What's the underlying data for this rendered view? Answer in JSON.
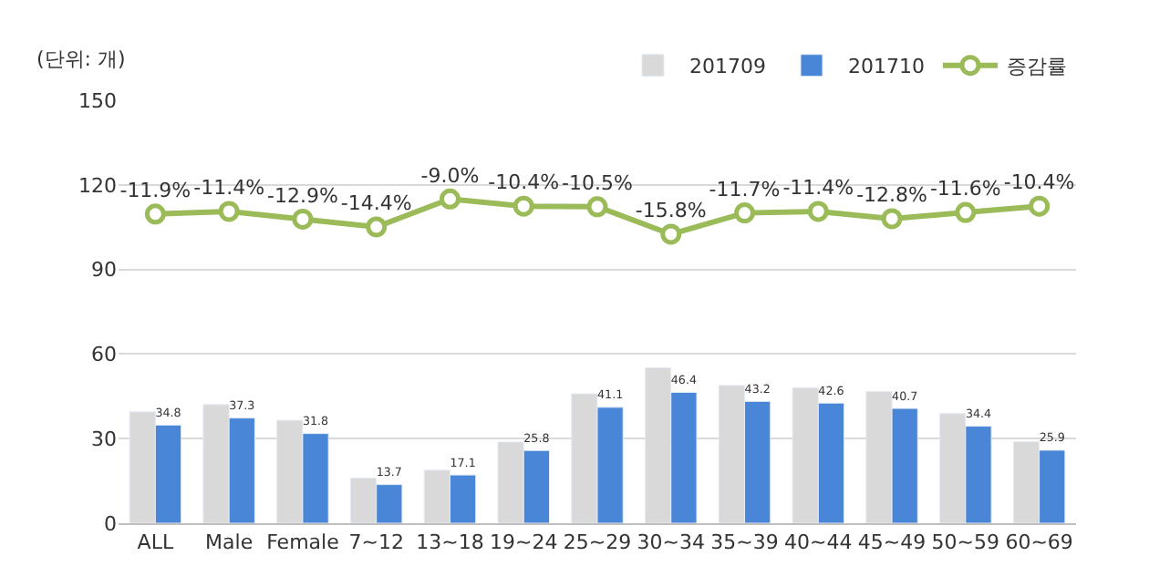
{
  "chart_data": {
    "type": "bar",
    "ylabel": "(단위: 개)",
    "categories": [
      "ALL",
      "Male",
      "Female",
      "7~12",
      "13~18",
      "19~24",
      "25~29",
      "30~34",
      "35~39",
      "40~44",
      "45~49",
      "50~59",
      "60~69"
    ],
    "series": [
      {
        "name": "201709",
        "color": "#d9d9d9",
        "values": [
          39.5,
          42.1,
          36.5,
          16.0,
          18.8,
          28.8,
          45.9,
          55.1,
          48.9,
          48.1,
          46.7,
          38.9,
          28.9
        ]
      },
      {
        "name": "201710",
        "color": "#4a86d8",
        "values": [
          34.8,
          37.3,
          31.8,
          13.7,
          17.1,
          25.8,
          41.1,
          46.4,
          43.2,
          42.6,
          40.7,
          34.4,
          25.9
        ],
        "value_labels": [
          "34.8",
          "37.3",
          "31.8",
          "13.7",
          "17.1",
          "25.8",
          "41.1",
          "46.4",
          "43.2",
          "42.6",
          "40.7",
          "34.4",
          "25.9"
        ]
      },
      {
        "name": "증감률",
        "type": "line",
        "axis": "y2",
        "color": "#9bbb59",
        "marker": "circle",
        "values": [
          -11.9,
          -11.4,
          -12.9,
          -14.4,
          -9.0,
          -10.4,
          -10.5,
          -15.8,
          -11.7,
          -11.4,
          -12.8,
          -11.6,
          -10.4
        ],
        "value_labels": [
          "-11.9%",
          "-11.4%",
          "-12.9%",
          "-14.4%",
          "-9.0%",
          "-10.4%",
          "-10.5%",
          "-15.8%",
          "-11.7%",
          "-11.4%",
          "-12.8%",
          "-11.6%",
          "-10.4%"
        ]
      }
    ],
    "ylim": [
      0,
      150
    ],
    "yticks": [
      0,
      30,
      60,
      90,
      120,
      150
    ],
    "tick_labels": "xy",
    "grid": "y",
    "legend": "top right"
  }
}
